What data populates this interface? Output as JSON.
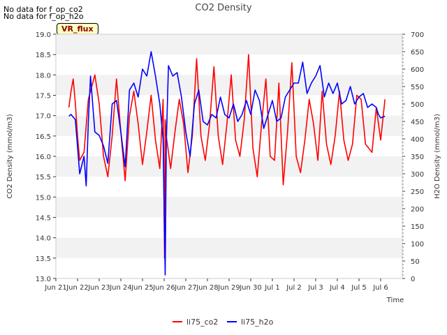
{
  "notes": [
    "No data for f_op_co2",
    "No data for f_op_h2o"
  ],
  "badge": "VR_flux",
  "chart_data": {
    "type": "line",
    "title": "CO2 Density",
    "xlabel": "Time",
    "ylabel_left": "CO2 Density (mmol/m3)",
    "ylabel_right": "H2O Density (mmol/m3)",
    "x_range_days": [
      0,
      16
    ],
    "x_ticks": [
      "Jun 21",
      "Jun 22",
      "Jun 23",
      "Jun 24",
      "Jun 25",
      "Jun 26",
      "Jun 27",
      "Jun 28",
      "Jun 29",
      "Jun 30",
      "Jul 1",
      "Jul 2",
      "Jul 3",
      "Jul 4",
      "Jul 5",
      "Jul 6"
    ],
    "ylim_left": [
      13.0,
      19.0
    ],
    "yticks_left": [
      "13.0",
      "13.5",
      "14.0",
      "14.5",
      "15.0",
      "15.5",
      "16.0",
      "16.5",
      "17.0",
      "17.5",
      "18.0",
      "18.5",
      "19.0"
    ],
    "ylim_right": [
      0,
      700
    ],
    "yticks_right": [
      "0",
      "50",
      "100",
      "150",
      "200",
      "250",
      "300",
      "350",
      "400",
      "450",
      "500",
      "550",
      "600",
      "650",
      "700"
    ],
    "legend_position": "bottom-center",
    "series": [
      {
        "name": "li75_co2",
        "color": "#ff0000",
        "axis": "left",
        "x": [
          0.6,
          0.7,
          0.8,
          0.9,
          1.0,
          1.1,
          1.3,
          1.5,
          1.8,
          2.0,
          2.2,
          2.4,
          2.6,
          2.8,
          3.0,
          3.2,
          3.4,
          3.6,
          3.8,
          4.0,
          4.2,
          4.4,
          4.6,
          4.8,
          4.95,
          5.0,
          5.02,
          5.05,
          5.1,
          5.3,
          5.5,
          5.7,
          5.9,
          6.1,
          6.3,
          6.5,
          6.7,
          6.9,
          7.1,
          7.3,
          7.5,
          7.7,
          7.9,
          8.1,
          8.3,
          8.5,
          8.7,
          8.9,
          9.1,
          9.3,
          9.5,
          9.7,
          9.9,
          10.1,
          10.3,
          10.5,
          10.7,
          10.9,
          11.1,
          11.3,
          11.5,
          11.7,
          11.9,
          12.1,
          12.3,
          12.5,
          12.7,
          12.9,
          13.1,
          13.3,
          13.5,
          13.7,
          13.9,
          14.1,
          14.3,
          14.6,
          14.8,
          15.0,
          15.1,
          15.2
        ],
        "values": [
          17.2,
          17.6,
          17.9,
          17.3,
          16.5,
          15.9,
          16.1,
          17.4,
          18.0,
          17.3,
          16.0,
          15.5,
          16.5,
          17.9,
          16.6,
          15.4,
          17.0,
          17.6,
          16.8,
          15.8,
          16.6,
          17.5,
          16.4,
          15.7,
          17.4,
          14.5,
          13.5,
          16.9,
          16.5,
          15.7,
          16.6,
          17.4,
          16.8,
          15.6,
          16.5,
          18.4,
          16.5,
          15.9,
          16.8,
          18.2,
          16.5,
          15.8,
          16.8,
          18.0,
          16.4,
          16.0,
          16.9,
          18.5,
          16.2,
          15.5,
          16.8,
          17.9,
          16.0,
          15.9,
          17.8,
          15.3,
          16.6,
          18.3,
          16.0,
          15.6,
          16.4,
          17.4,
          16.8,
          15.9,
          17.6,
          16.3,
          15.8,
          16.5,
          17.6,
          16.4,
          15.9,
          16.3,
          17.5,
          17.4,
          16.3,
          16.1,
          17.2,
          16.4,
          16.9,
          17.4
        ]
      },
      {
        "name": "li75_h2o",
        "color": "#0000ff",
        "axis": "right",
        "x": [
          0.6,
          0.7,
          0.9,
          1.1,
          1.3,
          1.4,
          1.5,
          1.6,
          1.8,
          2.0,
          2.2,
          2.4,
          2.6,
          2.8,
          3.0,
          3.2,
          3.4,
          3.6,
          3.8,
          4.0,
          4.2,
          4.4,
          4.6,
          4.8,
          4.95,
          5.0,
          5.05,
          5.1,
          5.2,
          5.4,
          5.6,
          5.8,
          6.0,
          6.2,
          6.4,
          6.6,
          6.8,
          7.0,
          7.2,
          7.4,
          7.6,
          7.8,
          8.0,
          8.2,
          8.4,
          8.6,
          8.8,
          9.0,
          9.2,
          9.4,
          9.6,
          9.8,
          10.0,
          10.2,
          10.4,
          10.6,
          10.8,
          11.0,
          11.2,
          11.4,
          11.6,
          11.8,
          12.0,
          12.2,
          12.4,
          12.6,
          12.8,
          13.0,
          13.2,
          13.4,
          13.6,
          13.8,
          14.0,
          14.2,
          14.4,
          14.6,
          14.8,
          14.9,
          15.0,
          15.2
        ],
        "values": [
          465,
          470,
          455,
          300,
          350,
          265,
          450,
          580,
          420,
          410,
          380,
          330,
          500,
          510,
          420,
          320,
          540,
          560,
          520,
          600,
          580,
          650,
          580,
          500,
          400,
          200,
          10,
          390,
          610,
          580,
          590,
          520,
          420,
          350,
          500,
          540,
          450,
          440,
          470,
          460,
          520,
          470,
          460,
          500,
          450,
          470,
          510,
          470,
          540,
          510,
          430,
          470,
          510,
          450,
          460,
          520,
          540,
          560,
          560,
          620,
          530,
          560,
          580,
          610,
          520,
          560,
          530,
          560,
          500,
          510,
          550,
          500,
          520,
          530,
          490,
          500,
          490,
          470,
          460,
          465
        ]
      }
    ]
  }
}
